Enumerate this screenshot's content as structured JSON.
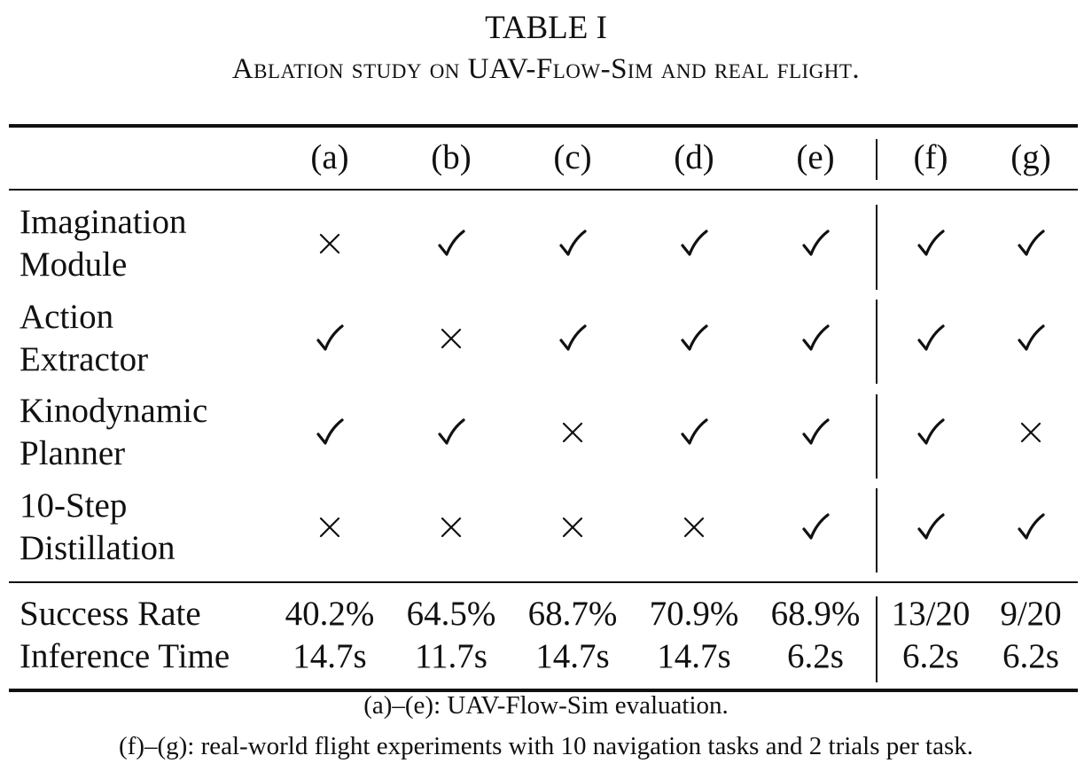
{
  "caption": {
    "title": "TABLE I",
    "subtitle": "Ablation study on UAV-Flow-Sim and real flight."
  },
  "table": {
    "columns": [
      "(a)",
      "(b)",
      "(c)",
      "(d)",
      "(e)",
      "(f)",
      "(g)"
    ],
    "components": [
      {
        "line1": "Imagination",
        "line2": "Module",
        "marks": [
          "cross",
          "check",
          "check",
          "check",
          "check",
          "check",
          "check"
        ]
      },
      {
        "line1": "Action",
        "line2": "Extractor",
        "marks": [
          "check",
          "cross",
          "check",
          "check",
          "check",
          "check",
          "check"
        ]
      },
      {
        "line1": "Kinodynamic",
        "line2": "Planner",
        "marks": [
          "check",
          "check",
          "cross",
          "check",
          "check",
          "check",
          "cross"
        ]
      },
      {
        "line1": "10-Step",
        "line2": "Distillation",
        "marks": [
          "cross",
          "cross",
          "cross",
          "cross",
          "check",
          "check",
          "check"
        ]
      }
    ],
    "metrics": [
      {
        "label": "Success Rate",
        "values": [
          "40.2%",
          "64.5%",
          "68.7%",
          "70.9%",
          "68.9%",
          "13/20",
          "9/20"
        ]
      },
      {
        "label": "Inference Time",
        "values": [
          "14.7s",
          "11.7s",
          "14.7s",
          "14.7s",
          "6.2s",
          "6.2s",
          "6.2s"
        ]
      }
    ]
  },
  "footnotes": [
    "(a)–(e): UAV-Flow-Sim evaluation.",
    "(f)–(g): real-world flight experiments with 10 navigation tasks and 2 trials per task."
  ]
}
